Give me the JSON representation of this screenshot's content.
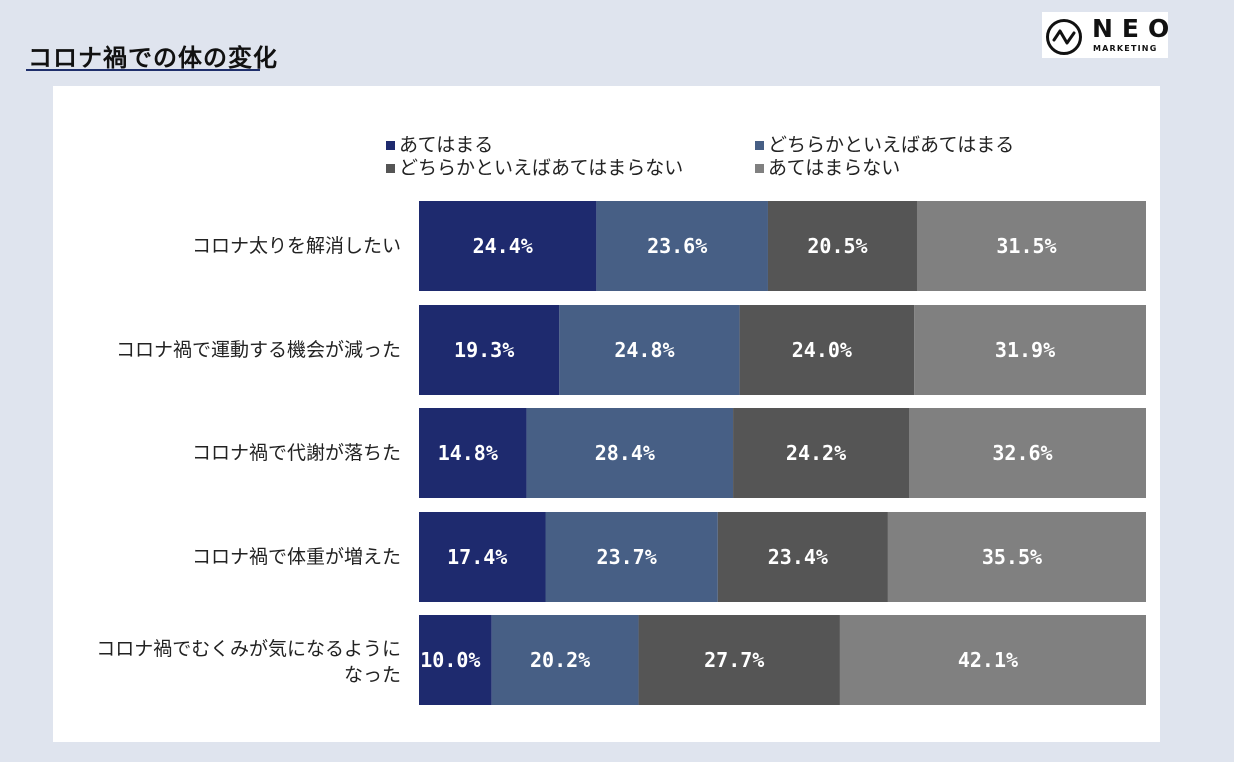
{
  "header": {
    "title": "コロナ禍での体の変化",
    "logo_text": "NEO",
    "logo_sub": "MARKETING"
  },
  "chart_data": {
    "type": "bar",
    "orientation": "horizontal",
    "stacked": true,
    "percent_stacked": true,
    "title": "",
    "xlabel": "",
    "ylabel": "",
    "legend_position": "top",
    "categories": [
      "コロナ太りを解消したい",
      "コロナ禍で運動する機会が減った",
      "コロナ禍で代謝が落ちた",
      "コロナ禍で体重が増えた",
      [
        "コロナ禍でむくみが気になるように",
        "なった"
      ]
    ],
    "series": [
      {
        "name": "あてはまる",
        "color": "#1e2a6e",
        "values": [
          24.4,
          19.3,
          14.8,
          17.4,
          10.0
        ],
        "labels": [
          "24.4%",
          "19.3%",
          "14.8%",
          "17.4%",
          "10.0%"
        ]
      },
      {
        "name": "どちらかといえばあてはまる",
        "color": "#475f85",
        "values": [
          23.6,
          24.8,
          28.4,
          23.7,
          20.2
        ],
        "labels": [
          "23.6%",
          "24.8%",
          "28.4%",
          "23.7%",
          "20.2%"
        ]
      },
      {
        "name": "どちらかといえばあてはまらない",
        "color": "#555555",
        "values": [
          20.5,
          24.0,
          24.2,
          23.4,
          27.7
        ],
        "labels": [
          "20.5%",
          "24.0%",
          "24.2%",
          "23.4%",
          "27.7%"
        ]
      },
      {
        "name": "あてはまらない",
        "color": "#808080",
        "values": [
          31.5,
          31.9,
          32.6,
          35.5,
          42.1
        ],
        "labels": [
          "31.5%",
          "31.9%",
          "32.6%",
          "35.5%",
          "42.1%"
        ]
      }
    ],
    "xlim": [
      0,
      100
    ],
    "grid": false
  }
}
